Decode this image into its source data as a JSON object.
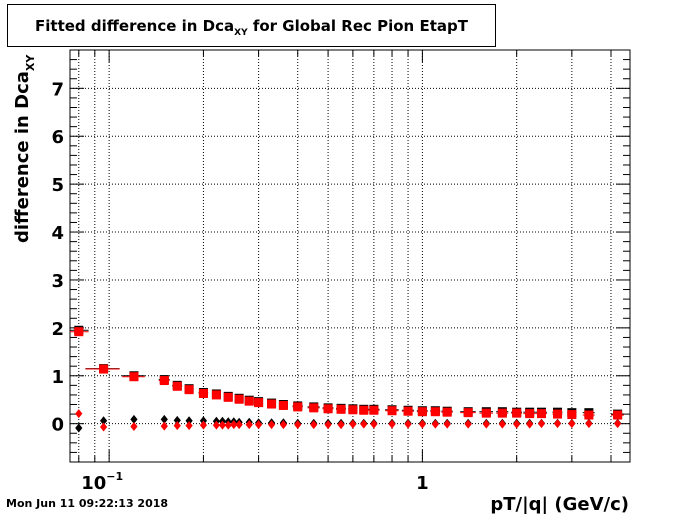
{
  "title": {
    "main": "Fitted difference in Dca",
    "sub": "XY",
    "rest": " for Global Rec Pion EtapT"
  },
  "timestamp": "Mon Jun 11 09:22:13 2018",
  "chart_data": {
    "type": "scatter",
    "title": "Fitted difference in Dca_XY for Global Rec Pion EtapT",
    "xlabel": "pT/|q| (GeV/c)",
    "ylabel": "difference in Dca",
    "ylabel_sub": "XY",
    "x_scale": "log",
    "xlim": [
      0.075,
      4.6
    ],
    "ylim": [
      -0.8,
      7.8
    ],
    "grid": true,
    "x_ticks": [
      {
        "value": 0.1,
        "base": "10",
        "exp": "−1"
      },
      {
        "value": 1,
        "base": "1",
        "exp": ""
      }
    ],
    "y_ticks": [
      {
        "value": 0,
        "label": "0"
      },
      {
        "value": 1,
        "label": "1"
      },
      {
        "value": 2,
        "label": "2"
      },
      {
        "value": 3,
        "label": "3"
      },
      {
        "value": 4,
        "label": "4"
      },
      {
        "value": 5,
        "label": "5"
      },
      {
        "value": 6,
        "label": "6"
      },
      {
        "value": 7,
        "label": "7"
      }
    ],
    "series": [
      {
        "marker": "square",
        "color": "#000000",
        "x": [
          0.08,
          0.096,
          0.12,
          0.15,
          0.165,
          0.18,
          0.2,
          0.22,
          0.24,
          0.26,
          0.28,
          0.3,
          0.33,
          0.36,
          0.4,
          0.45,
          0.5,
          0.55,
          0.6,
          0.65,
          0.7,
          0.8,
          0.9,
          1.0,
          1.1,
          1.2,
          1.4,
          1.6,
          1.8,
          2.0,
          2.2,
          2.4,
          2.7,
          3.0,
          3.4,
          4.2
        ],
        "y": [
          1.95,
          1.15,
          1.0,
          0.92,
          0.8,
          0.73,
          0.65,
          0.62,
          0.57,
          0.53,
          0.49,
          0.46,
          0.43,
          0.4,
          0.37,
          0.35,
          0.33,
          0.32,
          0.31,
          0.3,
          0.3,
          0.29,
          0.28,
          0.27,
          0.27,
          0.26,
          0.25,
          0.25,
          0.25,
          0.24,
          0.24,
          0.24,
          0.24,
          0.23,
          0.23,
          0.2
        ],
        "xerr": [
          0.006,
          0.012,
          0.01,
          0.006,
          0.006,
          0.006,
          0.007,
          0.007,
          0.007,
          0.007,
          0.008,
          0.009,
          0.01,
          0.01,
          0.015,
          0.02,
          0.02,
          0.02,
          0.02,
          0.02,
          0.03,
          0.04,
          0.04,
          0.04,
          0.04,
          0.05,
          0.08,
          0.08,
          0.08,
          0.08,
          0.1,
          0.1,
          0.1,
          0.1,
          0.15,
          0.2
        ]
      },
      {
        "marker": "square",
        "color": "#ff0000",
        "x": [
          0.08,
          0.096,
          0.12,
          0.15,
          0.165,
          0.18,
          0.2,
          0.22,
          0.24,
          0.26,
          0.28,
          0.3,
          0.33,
          0.36,
          0.4,
          0.45,
          0.5,
          0.55,
          0.6,
          0.65,
          0.7,
          0.8,
          0.9,
          1.0,
          1.1,
          1.2,
          1.4,
          1.6,
          1.8,
          2.0,
          2.2,
          2.4,
          2.7,
          3.0,
          3.4,
          4.2
        ],
        "y": [
          1.92,
          1.14,
          0.98,
          0.9,
          0.78,
          0.71,
          0.63,
          0.6,
          0.55,
          0.51,
          0.47,
          0.44,
          0.41,
          0.38,
          0.35,
          0.33,
          0.31,
          0.3,
          0.29,
          0.28,
          0.28,
          0.27,
          0.26,
          0.25,
          0.25,
          0.24,
          0.23,
          0.22,
          0.22,
          0.22,
          0.21,
          0.21,
          0.2,
          0.19,
          0.18,
          0.18
        ],
        "xerr": [
          0.006,
          0.012,
          0.01,
          0.006,
          0.006,
          0.006,
          0.007,
          0.007,
          0.007,
          0.007,
          0.008,
          0.009,
          0.01,
          0.01,
          0.015,
          0.02,
          0.02,
          0.02,
          0.02,
          0.02,
          0.03,
          0.04,
          0.04,
          0.04,
          0.04,
          0.05,
          0.08,
          0.08,
          0.08,
          0.08,
          0.1,
          0.1,
          0.1,
          0.1,
          0.15,
          0.2
        ]
      },
      {
        "marker": "diamond",
        "color": "#000000",
        "x": [
          0.08,
          0.096,
          0.12,
          0.15,
          0.165,
          0.18,
          0.2,
          0.22,
          0.23,
          0.24,
          0.25,
          0.26,
          0.28,
          0.3,
          0.33,
          0.36,
          0.4,
          0.45,
          0.5,
          0.55,
          0.6,
          0.65,
          0.7,
          0.8,
          0.9,
          1.0,
          1.1,
          1.2,
          1.4,
          1.6,
          1.8,
          2.0,
          2.2,
          2.4,
          2.7,
          3.0,
          3.4,
          4.2
        ],
        "y": [
          -0.09,
          0.06,
          0.09,
          0.09,
          0.07,
          0.06,
          0.06,
          0.05,
          0.05,
          0.04,
          0.04,
          0.03,
          0.03,
          0.02,
          0.02,
          0.02,
          0.01,
          0.01,
          0.01,
          0.01,
          0.01,
          0.01,
          0.01,
          0.01,
          0.01,
          0.01,
          0.01,
          0.01,
          0.01,
          0.01,
          0.01,
          0.01,
          0.01,
          0.01,
          0.01,
          0.01,
          0.01,
          0.01
        ]
      },
      {
        "marker": "diamond",
        "color": "#ff0000",
        "x": [
          0.08,
          0.096,
          0.12,
          0.15,
          0.165,
          0.18,
          0.2,
          0.22,
          0.23,
          0.24,
          0.25,
          0.26,
          0.28,
          0.3,
          0.33,
          0.36,
          0.4,
          0.45,
          0.5,
          0.55,
          0.6,
          0.65,
          0.7,
          0.8,
          0.9,
          1.0,
          1.1,
          1.2,
          1.4,
          1.6,
          1.8,
          2.0,
          2.2,
          2.4,
          2.7,
          3.0,
          3.4,
          4.2
        ],
        "y": [
          0.21,
          -0.07,
          -0.06,
          -0.05,
          -0.04,
          -0.04,
          -0.03,
          -0.03,
          -0.03,
          -0.03,
          -0.02,
          -0.02,
          -0.02,
          -0.02,
          -0.02,
          -0.02,
          -0.02,
          -0.02,
          -0.02,
          -0.02,
          -0.01,
          -0.01,
          -0.01,
          -0.01,
          -0.01,
          -0.01,
          -0.01,
          -0.01,
          -0.01,
          -0.01,
          -0.01,
          -0.01,
          -0.01,
          0.0,
          0.0,
          0.0,
          0.0,
          0.0
        ]
      }
    ]
  }
}
